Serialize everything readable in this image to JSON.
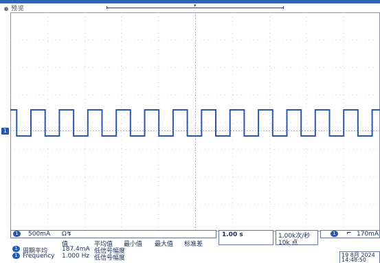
{
  "status_text": "预览",
  "channel": {
    "number": "1",
    "scale": "500mA",
    "coupling_icon": "Ω↯",
    "color": "#2a56b0"
  },
  "timebase": {
    "scale": "1.00 s"
  },
  "acquisition": {
    "rate": "1.00k次/秒",
    "points": "10k 点"
  },
  "trigger": {
    "channel": "1",
    "slope_icon": "falling-edge",
    "level": "170mA"
  },
  "datetime": {
    "date": "19 8月 2024",
    "time": "14:48:50"
  },
  "measurements": {
    "headers": [
      "值",
      "平均值",
      "最小值",
      "最大值",
      "标准差"
    ],
    "rows": [
      {
        "channel": "1",
        "name": "周期平均",
        "value": "187.4mA",
        "note": "低信号幅度"
      },
      {
        "channel": "1",
        "name": "Frequency",
        "value": "1.000 Hz",
        "note": "低信号幅度"
      }
    ]
  },
  "waveform": {
    "type": "square",
    "periods_on_screen": 13,
    "duty_cycle": 0.5,
    "color": "#2a56b0"
  },
  "grid": {
    "divisions_x": 10,
    "divisions_y": 8
  }
}
